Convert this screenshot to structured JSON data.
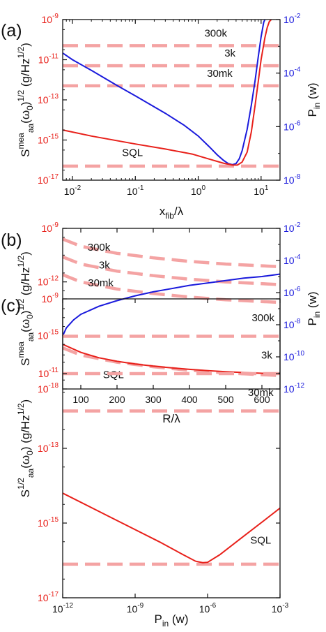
{
  "colors": {
    "red": "#e8201a",
    "blue": "#1a1adc",
    "dash": "#f4a3a3",
    "axis": "#111111"
  },
  "chart_data": [
    {
      "panel": "(a)",
      "type": "line",
      "xlabel_main": "x",
      "xlabel_sub": "fib",
      "xlabel_tail": "/λ",
      "x_scale": "log",
      "xlim": [
        0.007,
        20
      ],
      "xticks": [
        {
          "v": 0.01,
          "e": "-2"
        },
        {
          "v": 0.1,
          "e": "-1"
        },
        {
          "v": 1,
          "e": "0"
        },
        {
          "v": 10,
          "e": "1"
        }
      ],
      "y_scale": "log",
      "ylim_exp": [
        -17,
        -9
      ],
      "yticks": [
        -17,
        -15,
        -13,
        -11,
        -9
      ],
      "ylabel": {
        "main": "S",
        "sup": "mea",
        "sub": "aa",
        "mid": "(ω",
        "sub2": "0",
        "tail": ")",
        "sup2": "1/2",
        "unit": "(g/Hz",
        "unitsup": "1/2",
        "unitend": ")"
      },
      "y2_scale": "log",
      "y2lim_exp": [
        -8,
        -2
      ],
      "y2ticks": [
        -8,
        -6,
        -4,
        -2
      ],
      "y2label": {
        "main": "P",
        "sub": "in",
        "unit": "(w)"
      },
      "series": [
        {
          "name": "300k",
          "style": "dashed",
          "axis": "left",
          "x": [
            0.007,
            20
          ],
          "y": [
            -10.3,
            -10.3
          ],
          "label_x": 1.9,
          "label_y": -9.85
        },
        {
          "name": "3k",
          "style": "dashed",
          "axis": "left",
          "x": [
            0.007,
            20
          ],
          "y": [
            -11.3,
            -11.3
          ],
          "label_x": 3.2,
          "label_y": -10.85
        },
        {
          "name": "30mk",
          "style": "dashed",
          "axis": "left",
          "x": [
            0.007,
            20
          ],
          "y": [
            -12.3,
            -12.3
          ],
          "label_x": 2.2,
          "label_y": -11.85
        },
        {
          "name": "SQL",
          "style": "dashed",
          "axis": "left",
          "x": [
            0.007,
            20
          ],
          "y": [
            -16.3,
            -16.3
          ],
          "label_x": 0.09,
          "label_y": -15.8
        },
        {
          "style": "solid",
          "color": "blue",
          "axis": "right",
          "x": [
            0.007,
            0.01,
            0.02,
            0.05,
            0.1,
            0.3,
            0.6,
            1.0,
            1.5,
            2.0,
            2.5,
            3.0,
            3.5,
            4.0,
            4.5,
            5.0,
            6.0,
            7.0,
            8.0,
            9.0,
            10.0,
            11.0,
            11.5
          ],
          "y": [
            -3.25,
            -3.5,
            -3.9,
            -4.45,
            -4.85,
            -5.5,
            -5.95,
            -6.35,
            -6.75,
            -7.05,
            -7.25,
            -7.38,
            -7.42,
            -7.38,
            -7.2,
            -6.9,
            -6.1,
            -5.2,
            -4.3,
            -3.4,
            -2.65,
            -2.1,
            -2.0
          ]
        },
        {
          "style": "solid",
          "color": "red",
          "axis": "left",
          "x": [
            0.007,
            0.02,
            0.1,
            0.3,
            0.8,
            1.5,
            2.5,
            3.5,
            4.2,
            5.0,
            6.0,
            7.0,
            8.0,
            9.0,
            10.0,
            11.5,
            12.5,
            13.5,
            14.5
          ],
          "y": [
            -14.5,
            -14.8,
            -15.2,
            -15.45,
            -15.7,
            -15.95,
            -16.15,
            -16.25,
            -16.25,
            -16.1,
            -15.6,
            -14.6,
            -13.3,
            -12.1,
            -11.0,
            -9.9,
            -9.4,
            -9.1,
            -9.0
          ]
        }
      ]
    },
    {
      "panel": "(b)",
      "type": "line",
      "xlabel_main": "R/λ",
      "x_scale": "linear",
      "xlim": [
        50,
        650
      ],
      "xticks": [
        {
          "v": 100,
          "t": "100"
        },
        {
          "v": 200,
          "t": "200"
        },
        {
          "v": 300,
          "t": "300"
        },
        {
          "v": 400,
          "t": "400"
        },
        {
          "v": 500,
          "t": "500"
        },
        {
          "v": 600,
          "t": "600"
        }
      ],
      "y_scale": "log",
      "ylim_exp": [
        -18,
        -9
      ],
      "yticks": [
        -18,
        -15,
        -12,
        -9
      ],
      "ylabel": {
        "main": "S",
        "sup": "mea",
        "sub": "aa",
        "mid": "(ω",
        "sub2": "0",
        "tail": ")",
        "sup2": "1/2",
        "unit": "(g/Hz",
        "unitsup": "1/2",
        "unitend": ")"
      },
      "y2_scale": "log",
      "y2lim_exp": [
        -12,
        -2
      ],
      "y2ticks": [
        -12,
        -10,
        -8,
        -6,
        -4,
        -2
      ],
      "y2label": {
        "main": "P",
        "sub": "in",
        "unit": "(w)"
      },
      "series": [
        {
          "name": "300k",
          "style": "dashed",
          "axis": "left",
          "x": [
            50,
            100,
            200,
            300,
            400,
            500,
            650
          ],
          "y": [
            -9.6,
            -10.0,
            -10.4,
            -10.65,
            -10.85,
            -11.0,
            -11.15
          ],
          "label_x": 150,
          "label_y": -10.25
        },
        {
          "name": "3k",
          "style": "dashed",
          "axis": "left",
          "x": [
            50,
            100,
            200,
            300,
            400,
            500,
            650
          ],
          "y": [
            -10.6,
            -11.0,
            -11.4,
            -11.65,
            -11.85,
            -12.0,
            -12.15
          ],
          "label_x": 165,
          "label_y": -11.25
        },
        {
          "name": "30mk",
          "style": "dashed",
          "axis": "left",
          "x": [
            50,
            100,
            200,
            300,
            400,
            500,
            650
          ],
          "y": [
            -11.6,
            -12.0,
            -12.4,
            -12.65,
            -12.85,
            -13.0,
            -13.15
          ],
          "label_x": 155,
          "label_y": -12.25
        },
        {
          "name": "SQL",
          "style": "dashed",
          "axis": "left",
          "x": [
            50,
            100,
            200,
            300,
            400,
            500,
            650
          ],
          "y": [
            -15.7,
            -16.1,
            -16.5,
            -16.75,
            -16.95,
            -17.1,
            -17.25
          ],
          "label_x": 190,
          "label_y": -17.4
        },
        {
          "style": "solid",
          "color": "blue",
          "axis": "right",
          "x": [
            50,
            60,
            80,
            100,
            150,
            200,
            250,
            300,
            350,
            400,
            450,
            500,
            550,
            600,
            650
          ],
          "y": [
            -8.7,
            -8.2,
            -7.7,
            -7.35,
            -6.85,
            -6.5,
            -6.2,
            -5.95,
            -5.75,
            -5.55,
            -5.4,
            -5.25,
            -5.1,
            -5.0,
            -4.85
          ]
        },
        {
          "style": "solid",
          "color": "red",
          "axis": "left",
          "x": [
            50,
            100,
            150,
            200,
            250,
            300,
            350,
            400,
            450,
            500,
            550,
            600,
            650
          ],
          "y": [
            -15.5,
            -15.95,
            -16.25,
            -16.45,
            -16.6,
            -16.72,
            -16.82,
            -16.9,
            -16.97,
            -17.03,
            -17.08,
            -17.12,
            -17.16
          ]
        }
      ]
    },
    {
      "panel": "(c)",
      "type": "line",
      "xlabel_main": "P",
      "xlabel_sub": "in",
      "xlabel_tail": " (w)",
      "x_scale": "log",
      "xlim_exp": [
        -12,
        -3
      ],
      "xticks": [
        {
          "v": -12,
          "e": "-12"
        },
        {
          "v": -9,
          "e": "-9"
        },
        {
          "v": -6,
          "e": "-6"
        },
        {
          "v": -3,
          "e": "-3"
        }
      ],
      "y_scale": "log",
      "ylim_exp": [
        -17,
        -9
      ],
      "yticks": [
        -17,
        -15,
        -13,
        -11,
        -9
      ],
      "ylabel": {
        "main": "S",
        "sup": "1/2",
        "sub": "aa",
        "mid": "(ω",
        "sub2": "0",
        "tail": ")",
        "sup2": "",
        "unit": "(g/Hz",
        "unitsup": "1/2",
        "unitend": ")"
      },
      "series": [
        {
          "name": "300k",
          "style": "dashed",
          "axis": "left",
          "x": [
            -12,
            -3
          ],
          "y": [
            -10.0,
            -10.0
          ],
          "label_x": -3.7,
          "label_y": -9.6
        },
        {
          "name": "3k",
          "style": "dashed",
          "axis": "left",
          "x": [
            -12,
            -3
          ],
          "y": [
            -11.0,
            -11.0
          ],
          "label_x": -3.55,
          "label_y": -10.6
        },
        {
          "name": "30mk",
          "style": "dashed",
          "axis": "left",
          "x": [
            -12,
            -3
          ],
          "y": [
            -12.0,
            -12.0
          ],
          "label_x": -3.8,
          "label_y": -11.6
        },
        {
          "name": "SQL",
          "style": "dashed",
          "axis": "left",
          "x": [
            -12,
            -3
          ],
          "y": [
            -16.1,
            -16.1
          ],
          "label_x": -3.8,
          "label_y": -15.55
        },
        {
          "style": "solid",
          "color": "red",
          "axis": "left",
          "x": [
            -12,
            -10,
            -8,
            -7,
            -6.5,
            -6.2,
            -6.0,
            -5.5,
            -4.5,
            -3.5,
            -3
          ],
          "y": [
            -14.2,
            -14.85,
            -15.5,
            -15.85,
            -16.02,
            -16.06,
            -16.05,
            -15.85,
            -15.35,
            -14.85,
            -14.6
          ]
        }
      ]
    }
  ]
}
